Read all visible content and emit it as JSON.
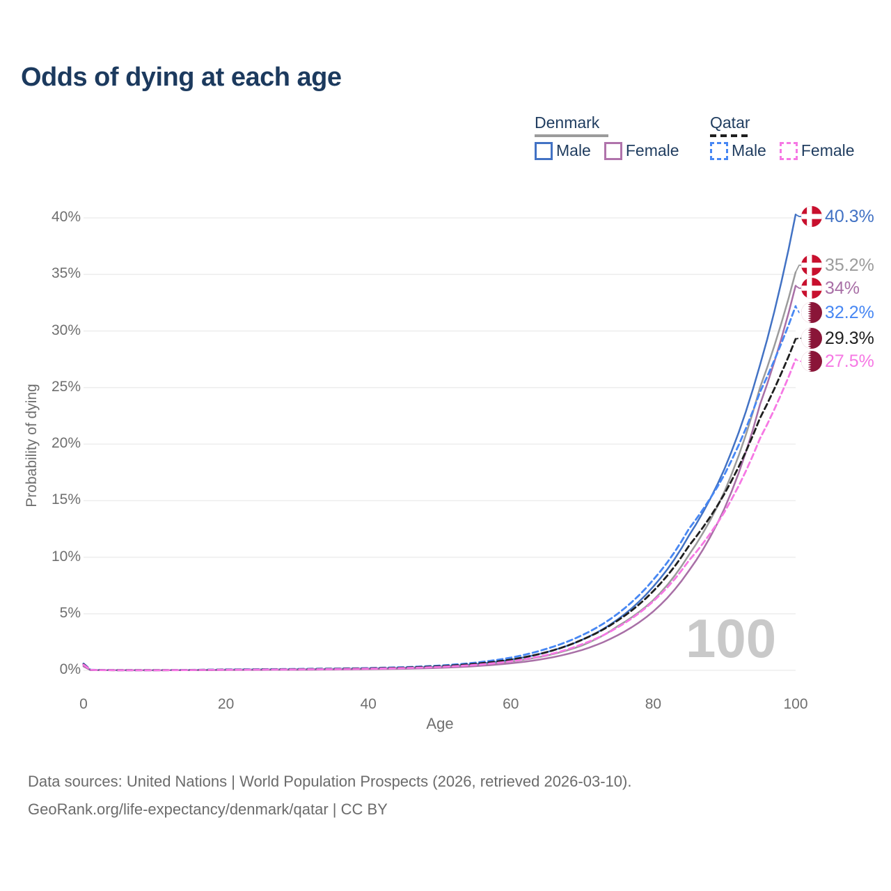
{
  "title": "Odds of dying at each age",
  "watermark": "100",
  "legend": {
    "groups": [
      {
        "label": "Denmark",
        "line_style": "solid",
        "items": [
          {
            "label": "Male",
            "color": "#4272c4"
          },
          {
            "label": "Female",
            "color": "#b073ab"
          }
        ]
      },
      {
        "label": "Qatar",
        "line_style": "dashed",
        "items": [
          {
            "label": "Male",
            "color": "#4787f3"
          },
          {
            "label": "Female",
            "color": "#f678e4"
          }
        ]
      }
    ]
  },
  "axes": {
    "y": {
      "label": "Probability of dying",
      "tick_labels": [
        "0%",
        "5%",
        "10%",
        "15%",
        "20%",
        "25%",
        "30%",
        "35%",
        "40%"
      ],
      "tick_values": [
        0,
        5,
        10,
        15,
        20,
        25,
        30,
        35,
        40
      ]
    },
    "x": {
      "label": "Age",
      "tick_labels": [
        "0",
        "20",
        "40",
        "60",
        "80",
        "100"
      ],
      "tick_values": [
        0,
        20,
        40,
        60,
        80,
        100
      ]
    }
  },
  "colors": {
    "title": "#1c3a5e",
    "gridline": "#ededed",
    "axis_text": "#6f6f6f",
    "watermark": "#c9c9c9",
    "denmark_flag_red": "#c8102e",
    "qatar_flag_maroon": "#8a1538"
  },
  "chart_data": {
    "type": "line",
    "title": "Odds of dying at each age",
    "xlabel": "Age",
    "ylabel": "Probability of dying",
    "xlim": [
      0,
      100
    ],
    "ylim_pct": [
      0,
      40
    ],
    "grid": true,
    "legend_position": "top-right",
    "y_unit": "percent",
    "anchor_ages": [
      0,
      1,
      5,
      10,
      20,
      30,
      40,
      45,
      50,
      55,
      60,
      65,
      70,
      75,
      80,
      85,
      90,
      95,
      100
    ],
    "series": [
      {
        "name": "Denmark Male",
        "country": "Denmark",
        "sex": "Male",
        "line_style": "solid",
        "color": "#4272c4",
        "flag": "denmark",
        "end_label": "40.3%",
        "end_value_pct": 40.3,
        "values_pct": [
          0.45,
          0.03,
          0.012,
          0.012,
          0.06,
          0.09,
          0.16,
          0.22,
          0.33,
          0.55,
          0.95,
          1.6,
          2.7,
          4.5,
          7.4,
          11.9,
          17.8,
          27.0,
          40.3
        ]
      },
      {
        "name": "Denmark",
        "country": "Denmark",
        "sex": "Both",
        "line_style": "solid",
        "color": "#9b9b9b",
        "flag": "denmark",
        "end_label": "35.2%",
        "end_value_pct": 35.2,
        "values_pct": [
          0.4,
          0.025,
          0.01,
          0.01,
          0.045,
          0.07,
          0.13,
          0.18,
          0.27,
          0.45,
          0.78,
          1.3,
          2.2,
          3.9,
          6.2,
          10.2,
          15.8,
          25.0,
          35.2
        ]
      },
      {
        "name": "Denmark Female",
        "country": "Denmark",
        "sex": "Female",
        "line_style": "solid",
        "color": "#a86fa6",
        "flag": "denmark",
        "end_label": "34%",
        "end_value_pct": 34.0,
        "values_pct": [
          0.35,
          0.02,
          0.008,
          0.008,
          0.03,
          0.05,
          0.1,
          0.14,
          0.22,
          0.37,
          0.62,
          1.05,
          1.8,
          3.1,
          5.2,
          8.8,
          14.3,
          23.5,
          34.0
        ]
      },
      {
        "name": "Qatar Male",
        "country": "Qatar",
        "sex": "Male",
        "line_style": "dashed",
        "color": "#4787f3",
        "flag": "qatar",
        "end_label": "32.2%",
        "end_value_pct": 32.2,
        "values_pct": [
          0.6,
          0.05,
          0.02,
          0.02,
          0.08,
          0.12,
          0.2,
          0.28,
          0.42,
          0.68,
          1.12,
          1.9,
          3.1,
          5.0,
          8.0,
          12.5,
          17.3,
          24.6,
          32.2
        ]
      },
      {
        "name": "Qatar",
        "country": "Qatar",
        "sex": "Both",
        "line_style": "dashed",
        "color": "#1f1f1f",
        "flag": "qatar",
        "end_label": "29.3%",
        "end_value_pct": 29.3,
        "values_pct": [
          0.55,
          0.04,
          0.016,
          0.016,
          0.06,
          0.1,
          0.17,
          0.24,
          0.36,
          0.58,
          0.95,
          1.6,
          2.7,
          4.4,
          7.0,
          11.0,
          15.6,
          22.3,
          29.3
        ]
      },
      {
        "name": "Qatar Female",
        "country": "Qatar",
        "sex": "Female",
        "line_style": "dashed",
        "color": "#f678e4",
        "flag": "qatar",
        "end_label": "27.5%",
        "end_value_pct": 27.5,
        "values_pct": [
          0.5,
          0.035,
          0.013,
          0.013,
          0.05,
          0.08,
          0.14,
          0.2,
          0.3,
          0.48,
          0.8,
          1.35,
          2.3,
          3.8,
          6.1,
          9.7,
          14.0,
          20.5,
          27.5
        ]
      }
    ]
  },
  "source": {
    "line1": "Data sources: United Nations | World Population Prospects (2026, retrieved 2026-03-10).",
    "line2": "GeoRank.org/life-expectancy/denmark/qatar | CC BY"
  }
}
